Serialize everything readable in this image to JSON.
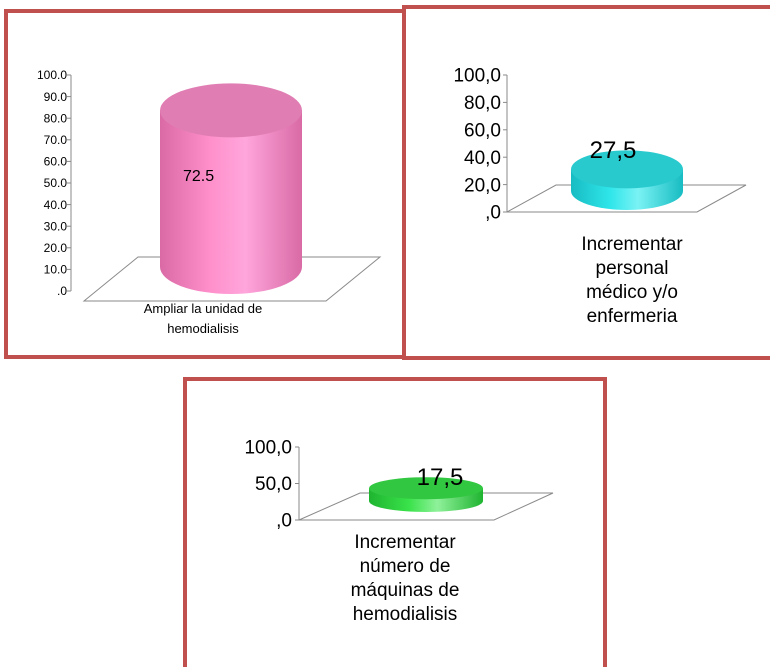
{
  "chart_data": [
    {
      "type": "bar",
      "categories": [
        "Ampliar la unidad de hemodialisis"
      ],
      "values": [
        72.5
      ],
      "data_labels": [
        "72.5"
      ],
      "ylim": [
        0,
        100
      ],
      "ticks": [
        ".0",
        "10.0",
        "20.0",
        "30.0",
        "40.0",
        "50.0",
        "60.0",
        "70.0",
        "80.0",
        "90.0",
        "100.0"
      ],
      "tick_values": [
        0,
        10,
        20,
        30,
        40,
        50,
        60,
        70,
        80,
        90,
        100
      ],
      "bar_color": "#ff8fcb",
      "grid": false,
      "title": "",
      "xlabel": "",
      "ylabel": ""
    },
    {
      "type": "bar",
      "categories": [
        "Incrementar personal médico y/o enfermeria"
      ],
      "values": [
        27.5
      ],
      "data_labels": [
        "27,5"
      ],
      "ylim": [
        0,
        100
      ],
      "ticks": [
        ",0",
        "20,0",
        "40,0",
        "60,0",
        "80,0",
        "100,0"
      ],
      "tick_values": [
        0,
        20,
        40,
        60,
        80,
        100
      ],
      "bar_color": "#2fe6ea",
      "grid": false,
      "title": "",
      "xlabel": "",
      "ylabel": ""
    },
    {
      "type": "bar",
      "categories": [
        "Incrementar número de máquinas de hemodialisis"
      ],
      "values": [
        17.5
      ],
      "data_labels": [
        "17,5"
      ],
      "ylim": [
        0,
        100
      ],
      "ticks": [
        ",0",
        "50,0",
        "100,0"
      ],
      "tick_values": [
        0,
        50,
        100
      ],
      "bar_color": "#39e24a",
      "grid": false,
      "title": "",
      "xlabel": "",
      "ylabel": ""
    }
  ],
  "panel_border_color": "#c0504d"
}
